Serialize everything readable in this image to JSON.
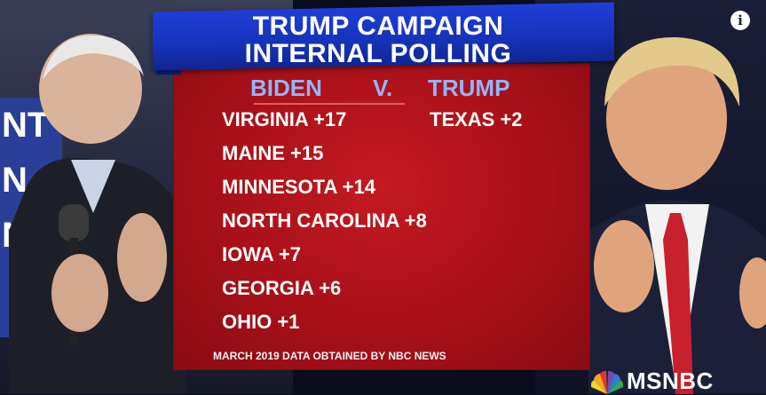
{
  "banner": {
    "line1": "TRUMP CAMPAIGN",
    "line2": "INTERNAL POLLING"
  },
  "header": {
    "left": "BIDEN",
    "vs": "V.",
    "right": "TRUMP"
  },
  "biden_states": [
    {
      "label": "VIRGINIA +17"
    },
    {
      "label": "MAINE +15"
    },
    {
      "label": "MINNESOTA +14"
    },
    {
      "label": "NORTH CAROLINA +8"
    },
    {
      "label": "IOWA +7"
    },
    {
      "label": "GEORGIA +6"
    },
    {
      "label": "OHIO +1"
    }
  ],
  "trump_states": [
    {
      "label": "TEXAS +2"
    }
  ],
  "footer": "MARCH 2019 DATA OBTAINED BY NBC NEWS",
  "network": "MSNBC",
  "info_icon": "i",
  "background_sign": [
    "NT",
    "N",
    "NT"
  ],
  "colors": {
    "board": "#b5121b",
    "banner": "#1b38c8",
    "header_text": "#8fb6ff",
    "text": "#ffffff"
  }
}
